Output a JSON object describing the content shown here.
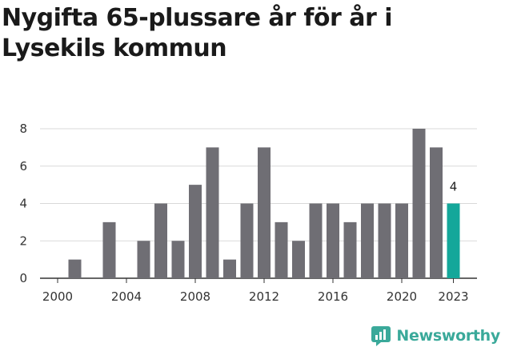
{
  "title": "Nygifta 65-plussare år för år i Lysekils kommun",
  "brand": {
    "name": "Newsworthy",
    "icon": "newsworthy-logo-icon",
    "color": "#3aa99a"
  },
  "colors": {
    "bar": "#6f6e74",
    "highlight": "#14a79a",
    "grid": "#d9d9d9",
    "axis": "#333333"
  },
  "chart_data": {
    "type": "bar",
    "title": "Nygifta 65-plussare år för år i Lysekils kommun",
    "xlabel": "",
    "ylabel": "",
    "x": [
      2000,
      2001,
      2002,
      2003,
      2004,
      2005,
      2006,
      2007,
      2008,
      2009,
      2010,
      2011,
      2012,
      2013,
      2014,
      2015,
      2016,
      2017,
      2018,
      2019,
      2020,
      2021,
      2022,
      2023
    ],
    "values": [
      0,
      1,
      0,
      3,
      0,
      2,
      4,
      2,
      5,
      7,
      1,
      4,
      7,
      3,
      2,
      4,
      4,
      3,
      4,
      4,
      4,
      8,
      7,
      4
    ],
    "x_ticks": [
      "2000",
      "2004",
      "2008",
      "2012",
      "2016",
      "2020",
      "2023"
    ],
    "y_ticks": [
      "0",
      "2",
      "4",
      "6",
      "8"
    ],
    "ylim": [
      0,
      8
    ],
    "highlight": {
      "category": 2023,
      "label": "4"
    },
    "grid": true
  }
}
